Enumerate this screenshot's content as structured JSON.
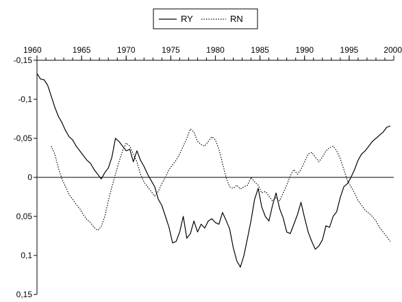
{
  "chart_data": {
    "type": "line",
    "title": "",
    "xlabel": "",
    "ylabel": "",
    "x_tick_labels": [
      "1960",
      "1965",
      "1970",
      "1975",
      "1980",
      "1985",
      "1990",
      "1995",
      "2000"
    ],
    "x_tick_values": [
      1960,
      1965,
      1970,
      1975,
      1980,
      1985,
      1990,
      1995,
      2000
    ],
    "xlim": [
      1960,
      2000
    ],
    "y_tick_labels": [
      "-0,15",
      "-0,1",
      "-0,05",
      "0",
      "0,05",
      "0,1",
      "0,15"
    ],
    "y_tick_values": [
      -0.15,
      -0.1,
      -0.05,
      0,
      0.05,
      0.1,
      0.15
    ],
    "ylim": [
      -0.15,
      0.15
    ],
    "y_inverted": true,
    "grid": false,
    "zero_line": true,
    "legend": {
      "position": "top-center",
      "entries": [
        "RY",
        "RN"
      ]
    },
    "series": [
      {
        "name": "RY",
        "style": "solid",
        "color": "#000000",
        "x": [
          1960.0,
          1960.4,
          1960.8,
          1961.2,
          1961.6,
          1962.0,
          1962.4,
          1962.8,
          1963.2,
          1963.6,
          1964.0,
          1964.4,
          1964.8,
          1965.2,
          1965.6,
          1966.0,
          1966.4,
          1966.8,
          1967.2,
          1967.6,
          1968.0,
          1968.4,
          1968.8,
          1969.2,
          1969.6,
          1970.0,
          1970.4,
          1970.8,
          1971.2,
          1971.6,
          1972.0,
          1972.4,
          1972.8,
          1973.2,
          1973.6,
          1974.0,
          1974.4,
          1974.8,
          1975.2,
          1975.6,
          1976.0,
          1976.4,
          1976.8,
          1977.2,
          1977.6,
          1978.0,
          1978.4,
          1978.8,
          1979.2,
          1979.6,
          1980.0,
          1980.4,
          1980.8,
          1981.2,
          1981.6,
          1982.0,
          1982.4,
          1982.8,
          1983.2,
          1983.6,
          1984.0,
          1984.4,
          1984.8,
          1985.2,
          1985.6,
          1986.0,
          1986.4,
          1986.8,
          1987.2,
          1987.6,
          1988.0,
          1988.4,
          1988.8,
          1989.2,
          1989.6,
          1990.0,
          1990.4,
          1990.8,
          1991.2,
          1991.6,
          1992.0,
          1992.4,
          1992.8,
          1993.2,
          1993.6,
          1994.0,
          1994.4,
          1994.8,
          1995.2,
          1995.6,
          1996.0,
          1996.4,
          1996.8,
          1997.2,
          1997.6,
          1998.0,
          1998.4,
          1998.8,
          1999.2,
          1999.6
        ],
        "values": [
          -0.133,
          -0.126,
          -0.125,
          -0.118,
          -0.104,
          -0.09,
          -0.078,
          -0.07,
          -0.06,
          -0.052,
          -0.048,
          -0.04,
          -0.034,
          -0.028,
          -0.022,
          -0.018,
          -0.01,
          -0.004,
          0.002,
          -0.006,
          -0.012,
          -0.026,
          -0.05,
          -0.046,
          -0.04,
          -0.034,
          -0.036,
          -0.02,
          -0.034,
          -0.022,
          -0.014,
          -0.004,
          0.004,
          0.012,
          0.028,
          0.036,
          0.05,
          0.064,
          0.084,
          0.082,
          0.07,
          0.05,
          0.078,
          0.072,
          0.056,
          0.07,
          0.06,
          0.065,
          0.056,
          0.053,
          0.058,
          0.06,
          0.045,
          0.055,
          0.066,
          0.09,
          0.107,
          0.115,
          0.1,
          0.078,
          0.055,
          0.028,
          0.014,
          0.038,
          0.05,
          0.056,
          0.036,
          0.02,
          0.04,
          0.052,
          0.07,
          0.072,
          0.06,
          0.048,
          0.032,
          0.052,
          0.07,
          0.082,
          0.092,
          0.088,
          0.08,
          0.062,
          0.064,
          0.05,
          0.044,
          0.026,
          0.012,
          0.008,
          0.0,
          -0.01,
          -0.022,
          -0.03,
          -0.034,
          -0.04,
          -0.046,
          -0.05,
          -0.054,
          -0.058,
          -0.064,
          -0.066
        ]
      },
      {
        "name": "RN",
        "style": "dotted",
        "color": "#000000",
        "x": [
          1961.6,
          1962.0,
          1962.4,
          1962.8,
          1963.2,
          1963.6,
          1964.0,
          1964.4,
          1964.8,
          1965.2,
          1965.6,
          1966.0,
          1966.4,
          1966.8,
          1967.2,
          1967.6,
          1968.0,
          1968.4,
          1968.8,
          1969.2,
          1969.6,
          1970.0,
          1970.4,
          1970.8,
          1971.2,
          1971.6,
          1972.0,
          1972.4,
          1972.8,
          1973.2,
          1973.6,
          1974.0,
          1974.4,
          1974.8,
          1975.2,
          1975.6,
          1976.0,
          1976.4,
          1976.8,
          1977.2,
          1977.6,
          1978.0,
          1978.4,
          1978.8,
          1979.2,
          1979.6,
          1980.0,
          1980.4,
          1980.8,
          1981.2,
          1981.6,
          1982.0,
          1982.4,
          1982.8,
          1983.2,
          1983.6,
          1984.0,
          1984.4,
          1984.8,
          1985.2,
          1985.6,
          1986.0,
          1986.4,
          1986.8,
          1987.2,
          1987.6,
          1988.0,
          1988.4,
          1988.8,
          1989.2,
          1989.6,
          1990.0,
          1990.4,
          1990.8,
          1991.2,
          1991.6,
          1992.0,
          1992.4,
          1992.8,
          1993.2,
          1993.6,
          1994.0,
          1994.4,
          1994.8,
          1995.2,
          1995.6,
          1996.0,
          1996.4,
          1996.8,
          1997.2,
          1997.6,
          1998.0,
          1998.4,
          1998.8,
          1999.2,
          1999.6
        ],
        "values": [
          -0.04,
          -0.03,
          -0.012,
          0.002,
          0.012,
          0.022,
          0.028,
          0.035,
          0.04,
          0.048,
          0.054,
          0.058,
          0.064,
          0.068,
          0.063,
          0.05,
          0.03,
          0.012,
          -0.004,
          -0.02,
          -0.034,
          -0.044,
          -0.04,
          -0.03,
          -0.02,
          -0.004,
          0.006,
          0.012,
          0.018,
          0.024,
          0.018,
          0.008,
          0.0,
          -0.01,
          -0.016,
          -0.022,
          -0.03,
          -0.04,
          -0.05,
          -0.062,
          -0.058,
          -0.046,
          -0.042,
          -0.04,
          -0.046,
          -0.052,
          -0.048,
          -0.036,
          -0.018,
          0.0,
          0.012,
          0.014,
          0.01,
          0.015,
          0.012,
          0.01,
          0.0,
          0.006,
          0.01,
          0.02,
          0.018,
          0.024,
          0.03,
          0.026,
          0.03,
          0.02,
          0.01,
          -0.002,
          -0.01,
          -0.004,
          -0.01,
          -0.02,
          -0.03,
          -0.032,
          -0.026,
          -0.02,
          -0.026,
          -0.034,
          -0.038,
          -0.04,
          -0.034,
          -0.024,
          -0.01,
          0.004,
          0.012,
          0.02,
          0.03,
          0.036,
          0.042,
          0.046,
          0.05,
          0.056,
          0.064,
          0.07,
          0.076,
          0.082
        ]
      }
    ]
  }
}
